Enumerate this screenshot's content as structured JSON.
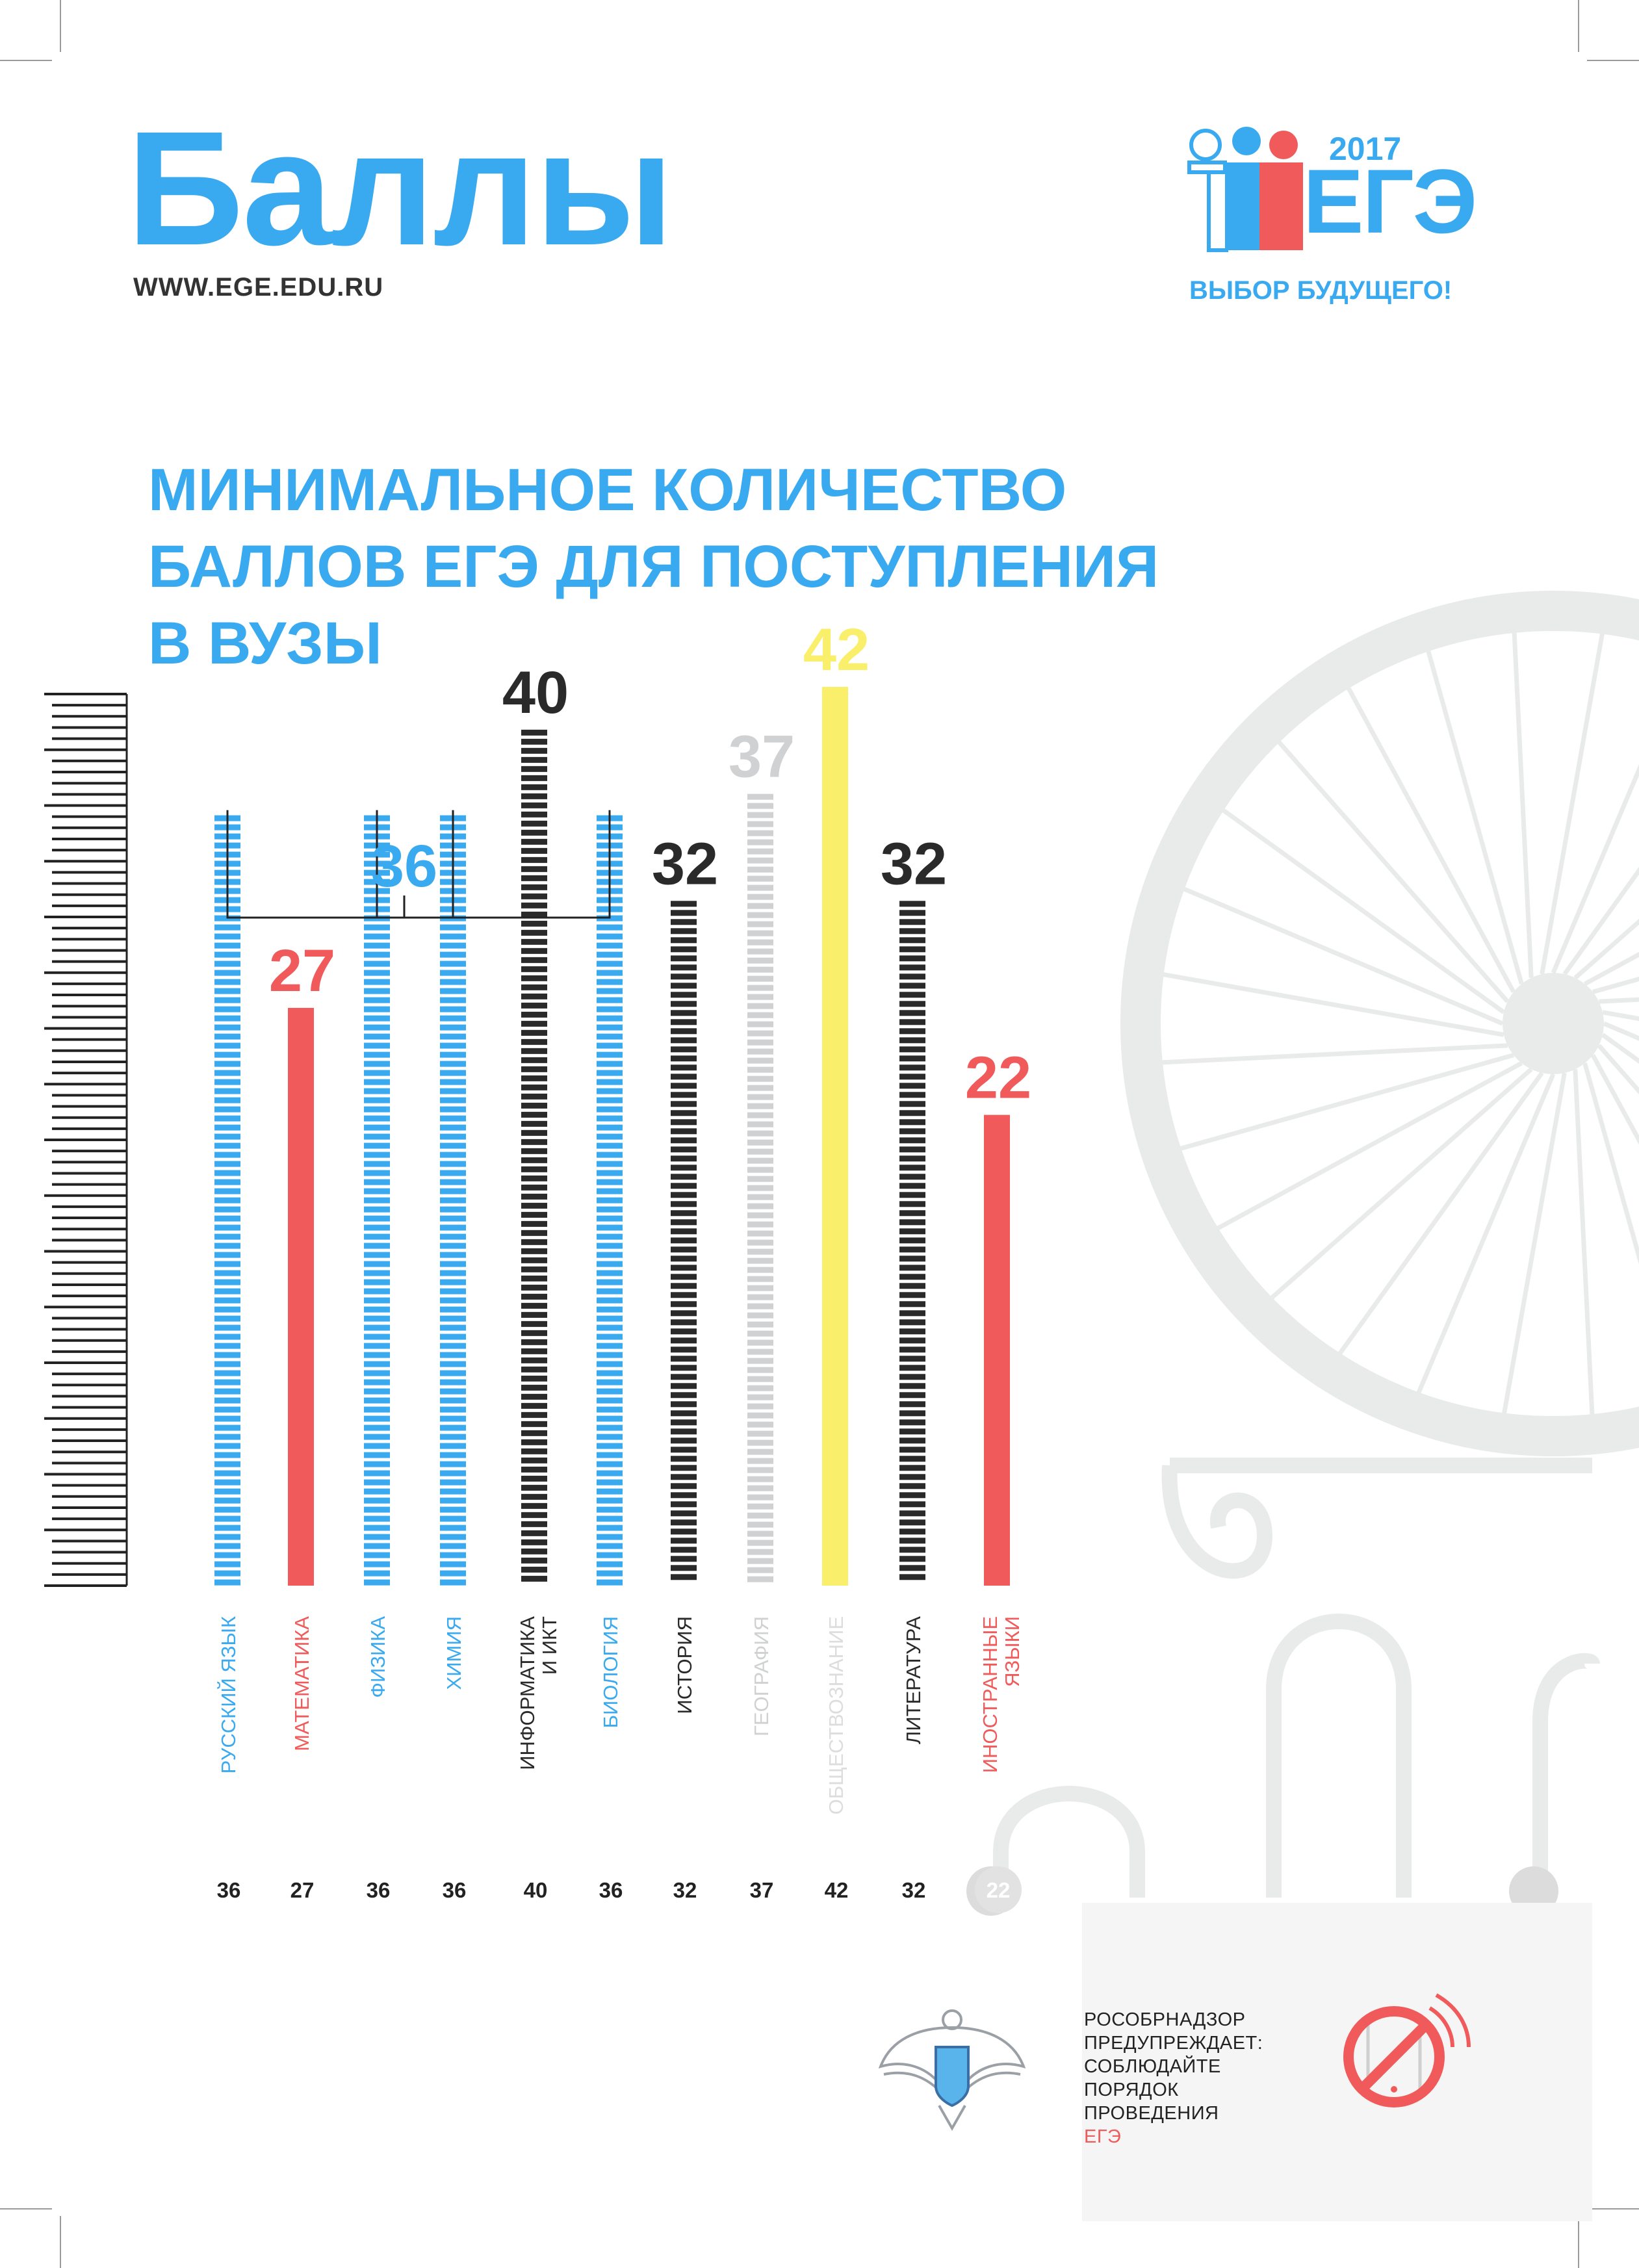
{
  "header": {
    "title": "Баллы",
    "url": "WWW.EGE.EDU.RU"
  },
  "logo": {
    "year": "2017",
    "name": "ЕГЭ",
    "slogan": "ВЫБОР БУДУЩЕГО!"
  },
  "heading": {
    "line1": "МИНИМАЛЬНОЕ КОЛИЧЕСТВО",
    "line2": "БАЛЛОВ ЕГЭ ДЛЯ ПОСТУПЛЕНИЯ",
    "line3": "В ВУЗЫ"
  },
  "chart_data": {
    "type": "bar",
    "title": "МИНИМАЛЬНОЕ КОЛИЧЕСТВО БАЛЛОВ ЕГЭ ДЛЯ ПОСТУПЛЕНИЯ В ВУЗЫ",
    "categories": [
      "РУССКИЙ ЯЗЫК",
      "МАТЕМАТИКА",
      "ФИЗИКА",
      "ХИМИЯ",
      "ИНФОРМАТИКА И ИКТ",
      "БИОЛОГИЯ",
      "ИСТОРИЯ",
      "ГЕОГРАФИЯ",
      "ОБЩЕСТВОЗНАНИЕ",
      "ЛИТЕРАТУРА",
      "ИНОСТРАННЫЕ ЯЗЫКИ"
    ],
    "label_lines": [
      [
        "РУССКИЙ ЯЗЫК"
      ],
      [
        "МАТЕМАТИКА"
      ],
      [
        "ФИЗИКА"
      ],
      [
        "ХИМИЯ"
      ],
      [
        "ИНФОРМАТИКА",
        "И ИКТ"
      ],
      [
        "БИОЛОГИЯ"
      ],
      [
        "ИСТОРИЯ"
      ],
      [
        "ГЕОГРАФИЯ"
      ],
      [
        "ОБЩЕСТВОЗНАНИЕ"
      ],
      [
        "ЛИТЕРАТУРА"
      ],
      [
        "ИНОСТРАННЫЕ",
        "ЯЗЫКИ"
      ]
    ],
    "values": [
      36,
      27,
      36,
      36,
      40,
      36,
      32,
      37,
      42,
      32,
      22
    ],
    "value_labels": [
      "",
      "27",
      "",
      "",
      "40",
      "",
      "32",
      "37",
      "42",
      "32",
      "22"
    ],
    "bottom_labels": [
      "36",
      "27",
      "36",
      "36",
      "40",
      "36",
      "32",
      "37",
      "42",
      "32",
      "22"
    ],
    "group_label": "36",
    "group_members": [
      0,
      2,
      3,
      5
    ],
    "colors": [
      "#3aaaf0",
      "#f15a5a",
      "#3aaaf0",
      "#3aaaf0",
      "#2a2a2a",
      "#3aaaf0",
      "#2a2a2a",
      "#cfd1d2",
      "#f9ef6a",
      "#2a2a2a",
      "#f15a5a"
    ],
    "styles": [
      "striped",
      "solid",
      "striped",
      "striped",
      "striped",
      "striped",
      "striped",
      "striped",
      "solid",
      "striped",
      "solid"
    ],
    "ylim": [
      0,
      45
    ],
    "grid": false
  },
  "footer": {
    "warning_lines": [
      "РОСОБРНАДЗОР",
      "ПРЕДУПРЕЖДАЕТ:",
      "СОБЛЮДАЙТЕ",
      "ПОРЯДОК",
      "ПРОВЕДЕНИЯ"
    ],
    "warning_ege": "ЕГЭ"
  },
  "icons": {
    "emblem": "eagle-emblem-icon",
    "phone": "no-phone-icon"
  }
}
